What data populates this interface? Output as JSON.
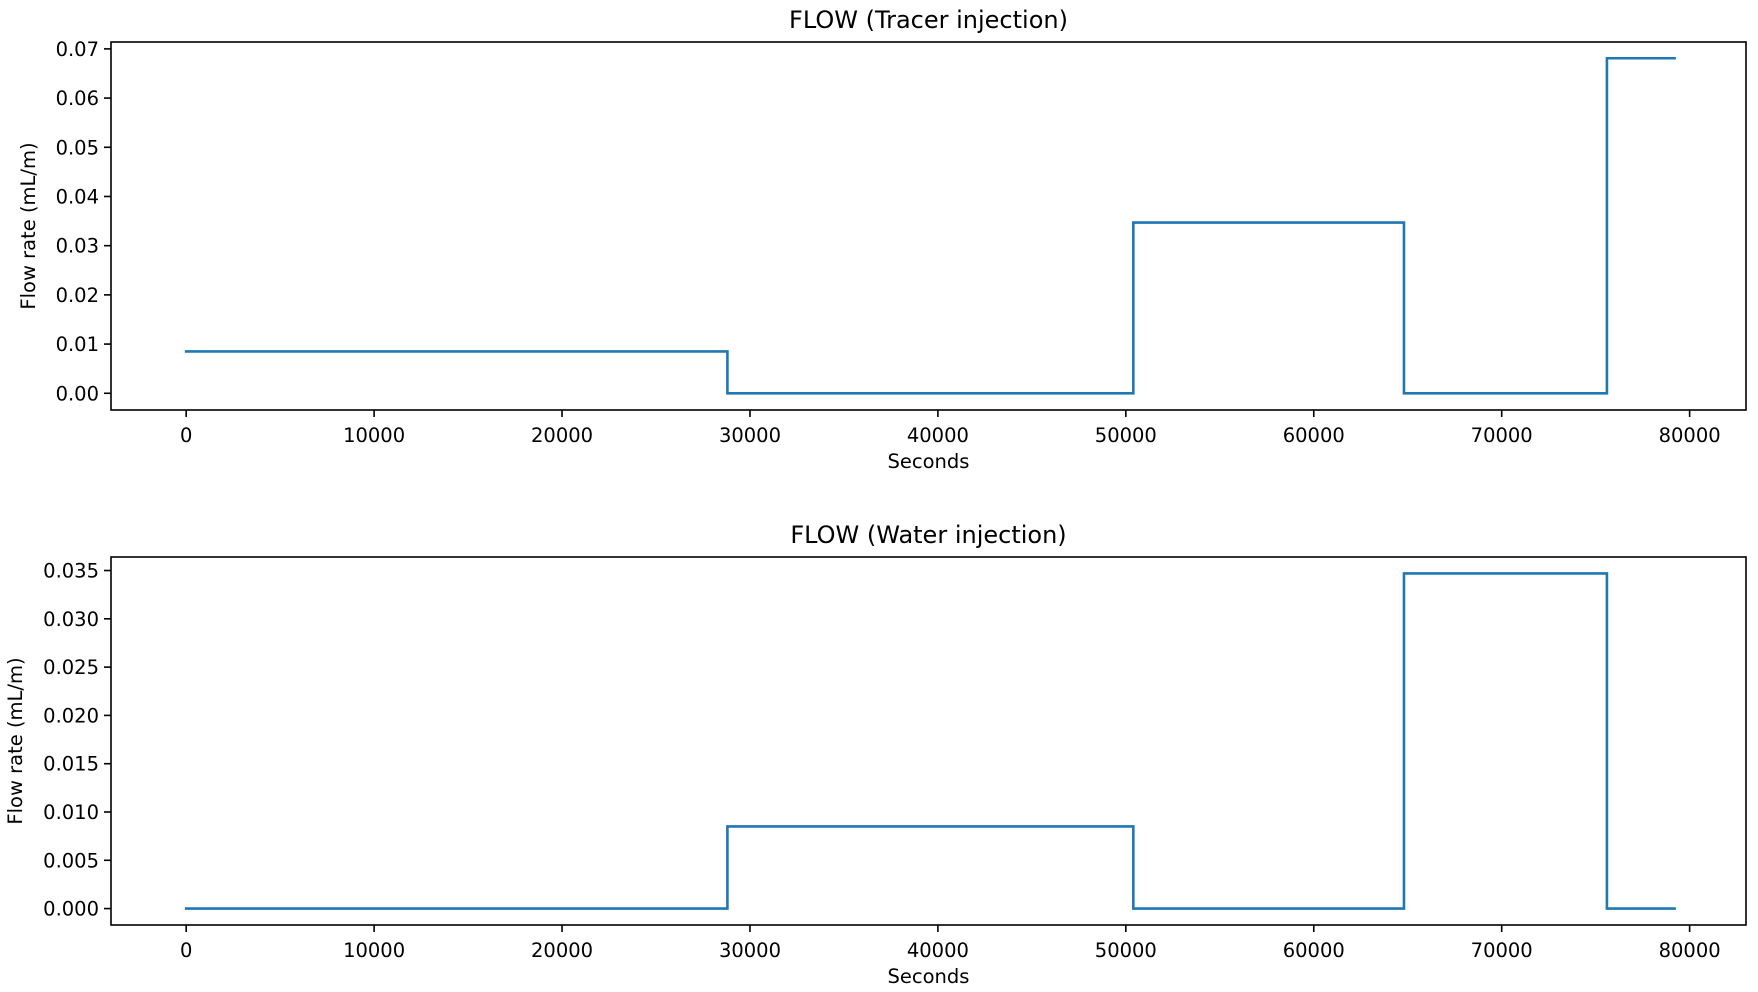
{
  "chart_data": [
    {
      "type": "line",
      "step": true,
      "title": "FLOW (Tracer injection)",
      "xlabel": "Seconds",
      "ylabel": "Flow rate (mL/m)",
      "xlim": [
        -4000,
        83000
      ],
      "ylim": [
        -0.0034,
        0.0714
      ],
      "xticks": [
        0,
        10000,
        20000,
        30000,
        40000,
        50000,
        60000,
        70000,
        80000
      ],
      "yticks": [
        "0.00",
        "0.01",
        "0.02",
        "0.03",
        "0.04",
        "0.05",
        "0.06",
        "0.07"
      ],
      "grid": false,
      "series": [
        {
          "color": "#1f77b4",
          "x": [
            0,
            28800,
            28800,
            50400,
            50400,
            64800,
            64800,
            75600,
            75600,
            79200
          ],
          "y": [
            0.0085,
            0.0085,
            0.0,
            0.0,
            0.0347,
            0.0347,
            0.0,
            0.0,
            0.0681,
            0.0681
          ]
        }
      ]
    },
    {
      "type": "line",
      "step": true,
      "title": "FLOW (Water injection)",
      "xlabel": "Seconds",
      "ylabel": "Flow rate (mL/m)",
      "xlim": [
        -4000,
        83000
      ],
      "ylim": [
        -0.0017,
        0.0364
      ],
      "xticks": [
        0,
        10000,
        20000,
        30000,
        40000,
        50000,
        60000,
        70000,
        80000
      ],
      "yticks": [
        "0.000",
        "0.005",
        "0.010",
        "0.015",
        "0.020",
        "0.025",
        "0.030",
        "0.035"
      ],
      "grid": false,
      "series": [
        {
          "color": "#1f77b4",
          "x": [
            0,
            28800,
            28800,
            50400,
            50400,
            64800,
            64800,
            75600,
            75600,
            79200
          ],
          "y": [
            0.0,
            0.0,
            0.0085,
            0.0085,
            0.0,
            0.0,
            0.0347,
            0.0347,
            0.0,
            0.0
          ]
        }
      ]
    }
  ]
}
